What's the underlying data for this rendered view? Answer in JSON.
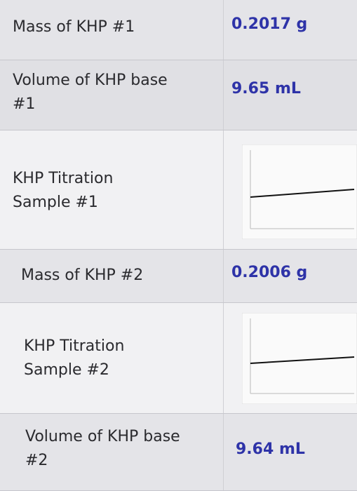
{
  "table": {
    "rows": [
      {
        "label": "Mass of KHP #1",
        "value": "0.2017 g"
      },
      {
        "label": "Volume of KHP base #1",
        "value": "9.65 mL"
      },
      {
        "label": "KHP Titration Sample #1"
      },
      {
        "label": "Mass of KHP #2",
        "value": "0.2006 g"
      },
      {
        "label": "KHP Titration Sample #2"
      },
      {
        "label": "Volume of KHP base #2",
        "value": "9.64 mL"
      }
    ]
  }
}
